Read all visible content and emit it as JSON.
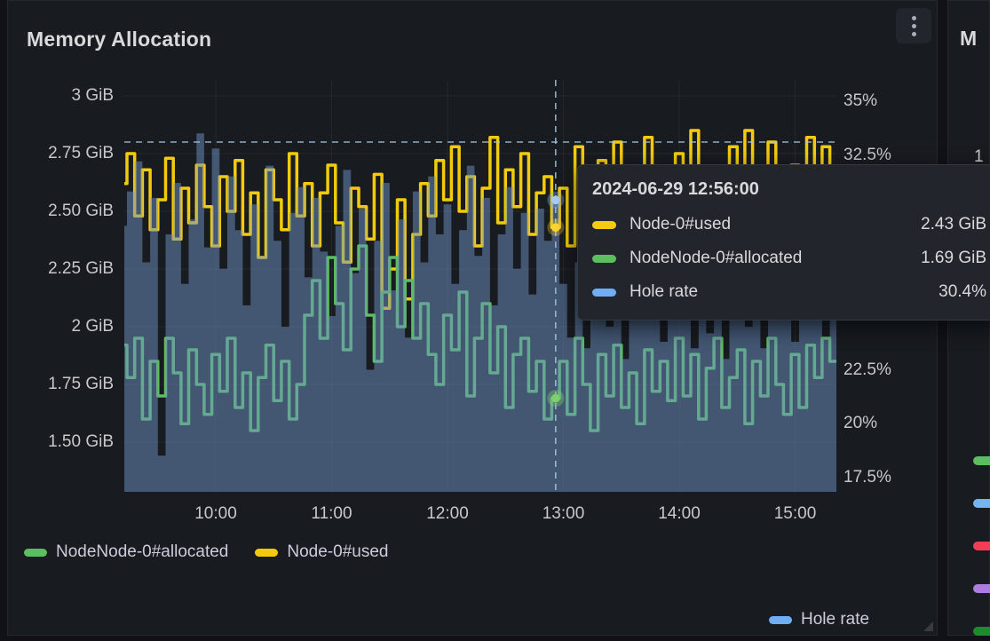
{
  "panel": {
    "title": "Memory Allocation"
  },
  "colors": {
    "page_bg": "#111217",
    "panel_bg": "#181B1F",
    "text": "#CCCCDC",
    "yellow": "#F2CC0C",
    "green": "#5CBE5F",
    "blue": "#6FAEF2",
    "area_fill": "rgba(110,148,200,0.5)",
    "crosshair": "rgba(166,198,222,0.85)",
    "grid": "rgba(204,204,220,0.07)",
    "red": "#F23D55",
    "purple": "#AE7BE0",
    "dark_green": "#1E8B2D"
  },
  "tooltip": {
    "timestamp": "2024-06-29 12:56:00",
    "rows": [
      {
        "label": "Node-0#used",
        "value": "2.43 GiB",
        "color": "#F2CC0C"
      },
      {
        "label": "NodeNode-0#allocated",
        "value": "1.69 GiB",
        "color": "#5CBE5F"
      },
      {
        "label": "Hole rate",
        "value": "30.4%",
        "color": "#6FAEF2"
      }
    ]
  },
  "legend": {
    "items": [
      {
        "label": "NodeNode-0#allocated",
        "color": "#5CBE5F"
      },
      {
        "label": "Node-0#used",
        "color": "#F2CC0C"
      }
    ]
  },
  "legend_hole": {
    "label": "Hole rate",
    "color": "#6FAEF2"
  },
  "next_panel": {
    "title": "M",
    "partial_axis_label": "1",
    "legend_colors": [
      "#5CBE5F",
      "#74B5F2",
      "#F23D55",
      "#AE7BE0",
      "#1E8B2D"
    ]
  },
  "chart_data": {
    "type": "line",
    "title": "Memory Allocation",
    "x_start_time": "09:12",
    "x_step_minutes": 4,
    "x_ticks": [
      "10:00",
      "11:00",
      "12:00",
      "13:00",
      "14:00",
      "15:00"
    ],
    "left_axis": {
      "unit": "GiB",
      "ticks": [
        {
          "label": "3 GiB",
          "value": 3.0
        },
        {
          "label": "2.75 GiB",
          "value": 2.75
        },
        {
          "label": "2.50 GiB",
          "value": 2.5
        },
        {
          "label": "2.25 GiB",
          "value": 2.25
        },
        {
          "label": "2 GiB",
          "value": 2.0
        },
        {
          "label": "1.75 GiB",
          "value": 1.75
        },
        {
          "label": "1.50 GiB",
          "value": 1.5
        }
      ]
    },
    "right_axis": {
      "unit": "%",
      "ticks": [
        {
          "label": "35%",
          "value": 35.0
        },
        {
          "label": "32.5%",
          "value": 32.5
        },
        {
          "label": "30%",
          "value": 30.0
        },
        {
          "label": "27.5%",
          "value": 27.5
        },
        {
          "label": "25%",
          "value": 25.0
        },
        {
          "label": "22.5%",
          "value": 22.5
        },
        {
          "label": "20%",
          "value": 20.0
        },
        {
          "label": "17.5%",
          "value": 17.5
        }
      ]
    },
    "grid": true,
    "legend_position": "bottom",
    "crosshair": {
      "time": "12:56",
      "horizontal_value_gib": 2.8
    },
    "hover_points": [
      {
        "series": "Node-0#used",
        "time": "12:56",
        "value": 2.43
      },
      {
        "series": "NodeNode-0#allocated",
        "time": "12:56",
        "value": 1.69
      },
      {
        "series": "Hole rate",
        "time": "12:56",
        "value": 30.4
      }
    ],
    "series": [
      {
        "name": "Node-0#used",
        "axis": "left",
        "style": "step-line",
        "color": "#F2CC0C",
        "values": [
          2.62,
          2.75,
          2.48,
          2.68,
          2.42,
          2.55,
          2.73,
          2.38,
          2.6,
          2.45,
          2.7,
          2.52,
          2.35,
          2.65,
          2.5,
          2.72,
          2.4,
          2.58,
          2.3,
          2.68,
          2.55,
          2.42,
          2.75,
          2.48,
          2.62,
          2.35,
          2.58,
          2.7,
          2.45,
          2.28,
          2.6,
          2.52,
          2.38,
          2.66,
          2.08,
          2.25,
          2.55,
          2.12,
          2.4,
          2.62,
          2.48,
          2.72,
          2.55,
          2.78,
          2.5,
          2.65,
          2.35,
          2.6,
          2.82,
          2.45,
          2.68,
          2.52,
          2.75,
          2.4,
          2.58,
          2.65,
          2.43,
          2.6,
          2.35,
          2.78,
          2.5,
          2.3,
          2.72,
          2.45,
          2.8,
          2.55,
          2.38,
          2.65,
          2.82,
          2.48,
          2.6,
          2.35,
          2.75,
          2.5,
          2.85,
          2.6,
          2.4,
          2.68,
          2.3,
          2.78,
          2.52,
          2.85,
          2.45,
          2.62,
          2.8,
          2.55,
          2.35,
          2.7,
          2.45,
          2.82,
          2.58,
          2.78,
          2.62
        ]
      },
      {
        "name": "NodeNode-0#allocated",
        "axis": "left",
        "style": "step-line",
        "color": "#5CBE5F",
        "values": [
          1.92,
          1.78,
          1.95,
          1.6,
          1.85,
          1.7,
          1.95,
          1.8,
          1.58,
          1.9,
          1.75,
          1.62,
          1.88,
          1.72,
          1.95,
          1.65,
          1.8,
          1.55,
          1.78,
          1.92,
          1.68,
          1.85,
          1.6,
          1.75,
          2.05,
          2.2,
          1.95,
          2.3,
          2.1,
          1.9,
          2.25,
          2.35,
          2.05,
          1.85,
          2.15,
          2.3,
          2.0,
          2.2,
          1.95,
          2.1,
          1.88,
          1.75,
          2.05,
          1.9,
          2.15,
          1.7,
          1.95,
          2.1,
          1.8,
          2.0,
          1.65,
          1.88,
          1.95,
          1.72,
          1.85,
          1.6,
          1.69,
          1.85,
          1.62,
          1.95,
          1.75,
          1.55,
          1.88,
          1.7,
          1.92,
          1.65,
          1.8,
          1.58,
          1.9,
          1.72,
          1.85,
          1.68,
          1.95,
          1.7,
          1.88,
          1.6,
          1.82,
          1.95,
          1.65,
          1.78,
          1.9,
          1.58,
          1.85,
          1.7,
          1.95,
          1.75,
          1.62,
          1.88,
          1.65,
          1.92,
          1.78,
          1.95,
          1.85
        ]
      },
      {
        "name": "Hole rate",
        "axis": "right",
        "style": "step-area",
        "color": "#6FAEF2",
        "fill": "rgba(110,148,200,0.5)",
        "values": [
          29.2,
          30.8,
          32.2,
          27.5,
          30.5,
          18.5,
          28.8,
          31.2,
          26.5,
          29.5,
          33.5,
          28.2,
          32.8,
          27.2,
          31.5,
          29.0,
          25.5,
          30.2,
          27.8,
          32.0,
          28.5,
          24.5,
          29.8,
          31.0,
          26.8,
          30.5,
          28.0,
          25.0,
          29.2,
          31.8,
          27.0,
          30.0,
          22.5,
          28.5,
          31.2,
          26.2,
          29.5,
          24.0,
          30.8,
          27.5,
          31.5,
          28.8,
          30.2,
          26.5,
          29.0,
          32.0,
          27.8,
          30.5,
          25.5,
          28.8,
          31.0,
          27.2,
          29.8,
          26.0,
          30.0,
          28.5,
          30.4,
          26.5,
          24.0,
          27.5,
          23.5,
          26.0,
          30.8,
          24.5,
          27.0,
          23.0,
          25.5,
          31.2,
          24.8,
          26.5,
          23.8,
          27.2,
          25.0,
          30.5,
          23.5,
          26.8,
          24.2,
          27.5,
          23.0,
          25.8,
          31.0,
          24.5,
          26.2,
          23.5,
          27.0,
          24.8,
          26.5,
          23.8,
          30.2,
          25.5,
          27.8,
          24.0,
          26.8
        ]
      }
    ]
  }
}
